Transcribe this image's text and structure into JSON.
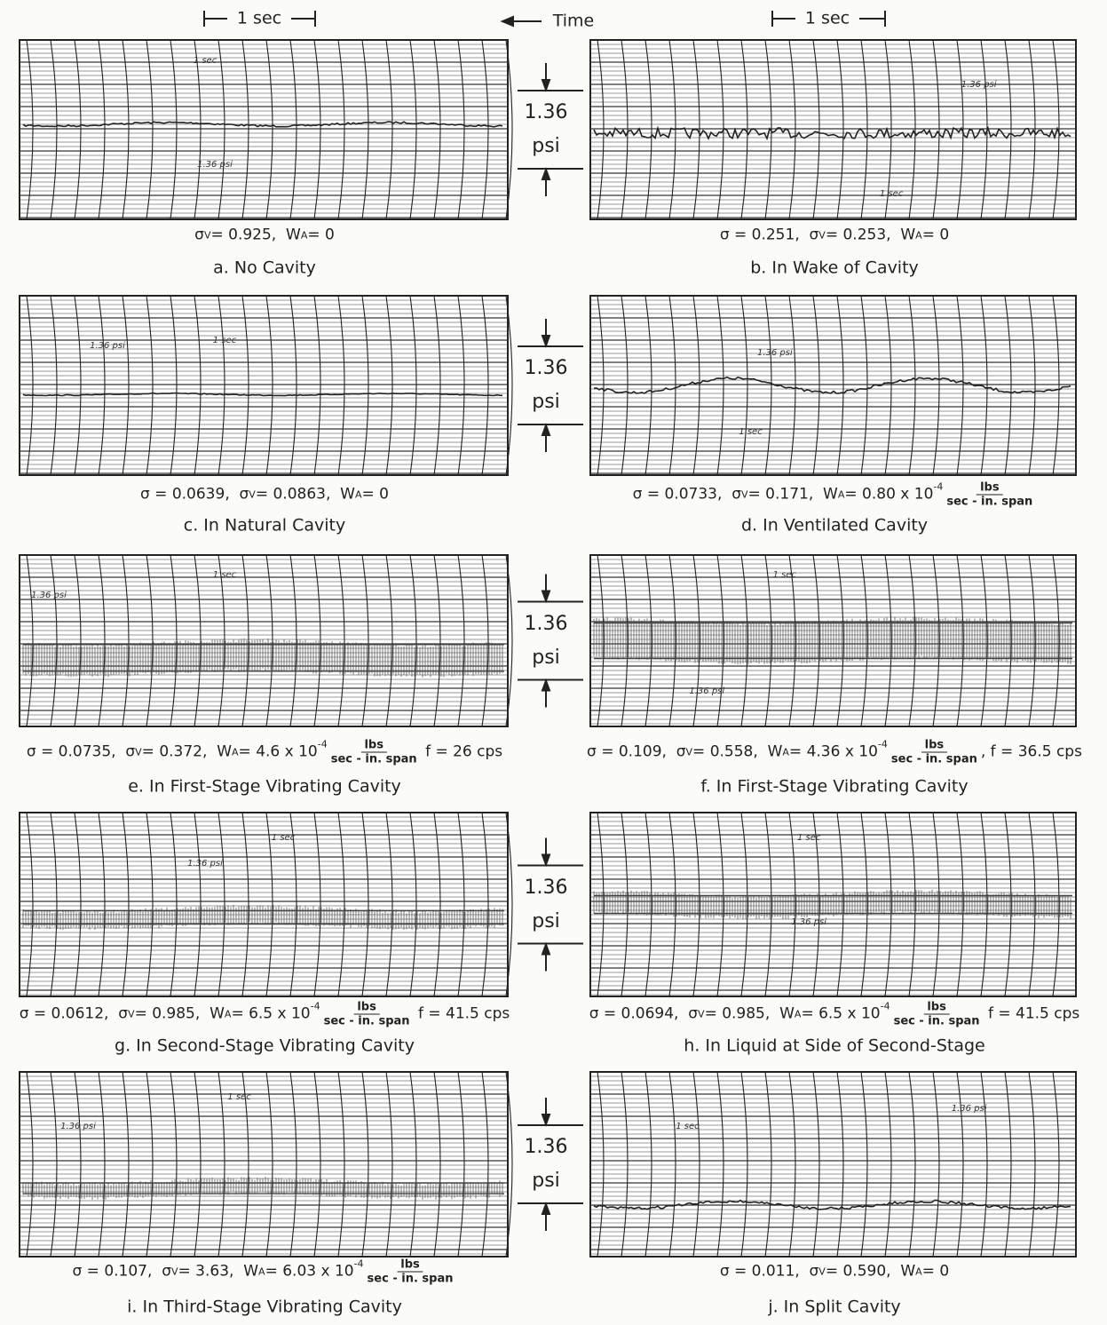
{
  "header": {
    "left_scale": "1 sec",
    "time": "Time",
    "right_scale": "1 sec"
  },
  "rows": [
    {
      "scale": {
        "value": "1.36",
        "unit": "psi"
      }
    },
    {
      "scale": {
        "value": "1.36",
        "unit": "psi"
      }
    },
    {
      "scale": {
        "value": "1.36",
        "unit": "psi"
      }
    },
    {
      "scale": {
        "value": "1.36",
        "unit": "psi"
      }
    },
    {
      "scale": {
        "value": "1.36",
        "unit": "psi"
      }
    }
  ],
  "panels": [
    {
      "params": [
        {
          "text": "σ"
        },
        {
          "sub": "V"
        },
        {
          "text": "= 0.925,  W"
        },
        {
          "sub": "A"
        },
        {
          "text": "= 0"
        }
      ],
      "caption": "a. No Cavity",
      "notes": [
        "1 sec",
        "1.36 psi"
      ]
    },
    {
      "params": [
        {
          "text": "σ = 0.251,  σ"
        },
        {
          "sub": "V"
        },
        {
          "text": "= 0.253,  W"
        },
        {
          "sub": "A"
        },
        {
          "text": "= 0"
        }
      ],
      "caption": "b. In Wake of Cavity",
      "notes": [
        "1 sec",
        "1.36 psi"
      ]
    },
    {
      "params": [
        {
          "text": "σ = 0.0639,  σ"
        },
        {
          "sub": "V"
        },
        {
          "text": "= 0.0863,  W"
        },
        {
          "sub": "A"
        },
        {
          "text": "= 0"
        }
      ],
      "caption": "c. In Natural Cavity",
      "notes": [
        "1 sec",
        "1.36 psi"
      ]
    },
    {
      "params": [
        {
          "text": "σ = 0.0733,  σ"
        },
        {
          "sub": "V"
        },
        {
          "text": "= 0.171,  W"
        },
        {
          "sub": "A"
        },
        {
          "text": "= 0.80 x 10"
        },
        {
          "sup": "-4"
        },
        {
          "num": "lbs",
          "den": "sec - in. span"
        }
      ],
      "caption": "d. In Ventilated Cavity",
      "notes": [
        "1 sec",
        "1.36 psi"
      ]
    },
    {
      "params": [
        {
          "text": "σ = 0.0735,  σ"
        },
        {
          "sub": "V"
        },
        {
          "text": "= 0.372,  W"
        },
        {
          "sub": "A"
        },
        {
          "text": "= 4.6 x 10"
        },
        {
          "sup": "-4"
        },
        {
          "num": "lbs",
          "den": "sec - in. span"
        },
        {
          "text": " f = 26 cps"
        }
      ],
      "caption": "e. In First-Stage Vibrating Cavity",
      "notes": [
        "1 sec",
        "1.36 psi"
      ]
    },
    {
      "params": [
        {
          "text": "σ = 0.109,  σ"
        },
        {
          "sub": "V"
        },
        {
          "text": "= 0.558,  W"
        },
        {
          "sub": "A"
        },
        {
          "text": "= 4.36 x 10"
        },
        {
          "sup": "-4"
        },
        {
          "num": "lbs",
          "den": "sec - in. span"
        },
        {
          "text": ", f = 36.5 cps"
        }
      ],
      "caption": "f. In First-Stage Vibrating Cavity",
      "notes": [
        "1 sec",
        "1.36 psi"
      ]
    },
    {
      "params": [
        {
          "text": "σ = 0.0612,  σ"
        },
        {
          "sub": "V"
        },
        {
          "text": "= 0.985,  W"
        },
        {
          "sub": "A"
        },
        {
          "text": "= 6.5 x 10"
        },
        {
          "sup": "-4"
        },
        {
          "num": "lbs",
          "den": "sec - in. span"
        },
        {
          "text": " f = 41.5 cps"
        }
      ],
      "caption": "g. In Second-Stage Vibrating Cavity",
      "notes": [
        "1 sec",
        "1.36 psi"
      ]
    },
    {
      "params": [
        {
          "text": "σ = 0.0694,  σ"
        },
        {
          "sub": "V"
        },
        {
          "text": "= 0.985,  W"
        },
        {
          "sub": "A"
        },
        {
          "text": "= 6.5 x 10"
        },
        {
          "sup": "-4"
        },
        {
          "num": "lbs",
          "den": "sec - in. span"
        },
        {
          "text": " f = 41.5 cps"
        }
      ],
      "caption": "h. In Liquid at Side of Second-Stage",
      "notes": [
        "1 sec",
        "1.36 psi"
      ]
    },
    {
      "params": [
        {
          "text": "σ = 0.107,  σ"
        },
        {
          "sub": "V"
        },
        {
          "text": "= 3.63,  W"
        },
        {
          "sub": "A"
        },
        {
          "text": "= 6.03 x 10"
        },
        {
          "sup": "-4"
        },
        {
          "num": "lbs",
          "den": "sec - in. span"
        }
      ],
      "caption": "i. In Third-Stage Vibrating Cavity",
      "notes": [
        "1 sec",
        "1.36 psi"
      ]
    },
    {
      "params": [
        {
          "text": "σ = 0.011,  σ"
        },
        {
          "sub": "V"
        },
        {
          "text": "= 0.590,  W"
        },
        {
          "sub": "A"
        },
        {
          "text": "= 0"
        }
      ],
      "caption": "j. In Split Cavity",
      "notes": [
        "1 sec",
        "1.36 psi"
      ]
    }
  ]
}
